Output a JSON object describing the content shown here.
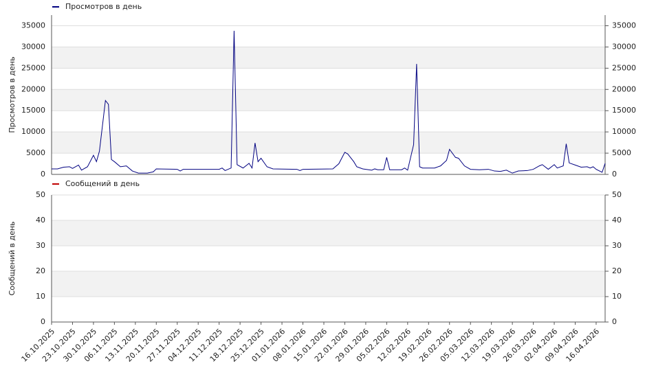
{
  "chart_data": [
    {
      "type": "line",
      "ylabel": "Просмотров в день",
      "xlim": [
        "16.10.2025",
        "19.04.2026"
      ],
      "ylim": [
        0,
        37500
      ],
      "yticks": [
        0,
        5000,
        10000,
        15000,
        20000,
        25000,
        30000,
        35000
      ],
      "grid": true,
      "x": [
        "16.10.2025",
        "18.10.2025",
        "20.10.2025",
        "22.10.2025",
        "23.10.2025",
        "25.10.2025",
        "26.10.2025",
        "28.10.2025",
        "30.10.2025",
        "31.10.2025",
        "01.11.2025",
        "03.11.2025",
        "04.11.2025",
        "05.11.2025",
        "06.11.2025",
        "08.11.2025",
        "10.11.2025",
        "12.11.2025",
        "14.11.2025",
        "17.11.2025",
        "19.11.2025",
        "20.11.2025",
        "27.11.2025",
        "28.11.2025",
        "29.11.2025",
        "11.12.2025",
        "12.12.2025",
        "13.12.2025",
        "15.12.2025",
        "16.12.2025",
        "17.12.2025",
        "19.12.2025",
        "21.12.2025",
        "22.12.2025",
        "23.12.2025",
        "24.12.2025",
        "25.12.2025",
        "27.12.2025",
        "29.12.2025",
        "06.01.2026",
        "07.01.2026",
        "08.01.2026",
        "18.01.2026",
        "20.01.2026",
        "22.01.2026",
        "23.01.2026",
        "25.01.2026",
        "26.01.2026",
        "28.01.2026",
        "31.01.2026",
        "01.02.2026",
        "02.02.2026",
        "04.02.2026",
        "05.02.2026",
        "06.02.2026",
        "10.02.2026",
        "11.02.2026",
        "12.02.2026",
        "14.02.2026",
        "15.02.2026",
        "16.02.2026",
        "17.02.2026",
        "21.02.2026",
        "23.02.2026",
        "25.02.2026",
        "26.02.2026",
        "28.02.2026",
        "01.03.2026",
        "03.03.2026",
        "05.03.2026",
        "08.03.2026",
        "11.03.2026",
        "13.03.2026",
        "15.03.2026",
        "17.03.2026",
        "19.03.2026",
        "21.03.2026",
        "24.03.2026",
        "26.03.2026",
        "28.03.2026",
        "29.03.2026",
        "31.03.2026",
        "02.04.2026",
        "03.04.2026",
        "05.04.2026",
        "06.04.2026",
        "07.04.2026",
        "09.04.2026",
        "11.04.2026",
        "13.04.2026",
        "14.04.2026",
        "15.04.2026",
        "16.04.2026",
        "18.04.2026",
        "19.04.2026"
      ],
      "series": [
        {
          "name": "Просмотров в день",
          "color": "#000080",
          "values": [
            1300,
            1300,
            1700,
            1800,
            1400,
            2200,
            1000,
            1800,
            4500,
            3000,
            5500,
            17400,
            16500,
            3500,
            3000,
            1800,
            2000,
            800,
            300,
            300,
            600,
            1300,
            1200,
            800,
            1200,
            1200,
            1500,
            900,
            1500,
            33800,
            2300,
            1500,
            2600,
            1500,
            7400,
            3000,
            3800,
            1800,
            1300,
            1200,
            900,
            1200,
            1300,
            2500,
            5200,
            4800,
            3000,
            1800,
            1300,
            1000,
            1300,
            1100,
            1100,
            4000,
            1100,
            1100,
            1500,
            1000,
            7000,
            26000,
            1800,
            1500,
            1500,
            2000,
            3300,
            5900,
            4000,
            3800,
            2000,
            1200,
            1100,
            1200,
            800,
            700,
            1000,
            300,
            800,
            900,
            1200,
            2000,
            2300,
            1200,
            2300,
            1500,
            2000,
            7200,
            2700,
            2200,
            1700,
            1800,
            1500,
            1800,
            1200,
            500,
            2600
          ]
        }
      ]
    },
    {
      "type": "line",
      "ylabel": "Сообщений в день",
      "xlim": [
        "16.10.2025",
        "19.04.2026"
      ],
      "ylim": [
        0,
        50
      ],
      "yticks": [
        0,
        10,
        20,
        30,
        40,
        50
      ],
      "grid": true,
      "xticks": [
        "16.10.2025",
        "23.10.2025",
        "30.10.2025",
        "06.11.2025",
        "13.11.2025",
        "20.11.2025",
        "27.11.2025",
        "04.12.2025",
        "11.12.2025",
        "18.12.2025",
        "25.12.2025",
        "01.01.2026",
        "08.01.2026",
        "15.01.2026",
        "22.01.2026",
        "29.01.2026",
        "05.02.2026",
        "12.02.2026",
        "19.02.2026",
        "26.02.2026",
        "05.03.2026",
        "12.03.2026",
        "19.03.2026",
        "26.03.2026",
        "02.04.2026",
        "09.04.2026",
        "16.04.2026"
      ],
      "x": [],
      "series": [
        {
          "name": "Сообщений в день",
          "color": "#c00000",
          "values": []
        }
      ]
    }
  ]
}
